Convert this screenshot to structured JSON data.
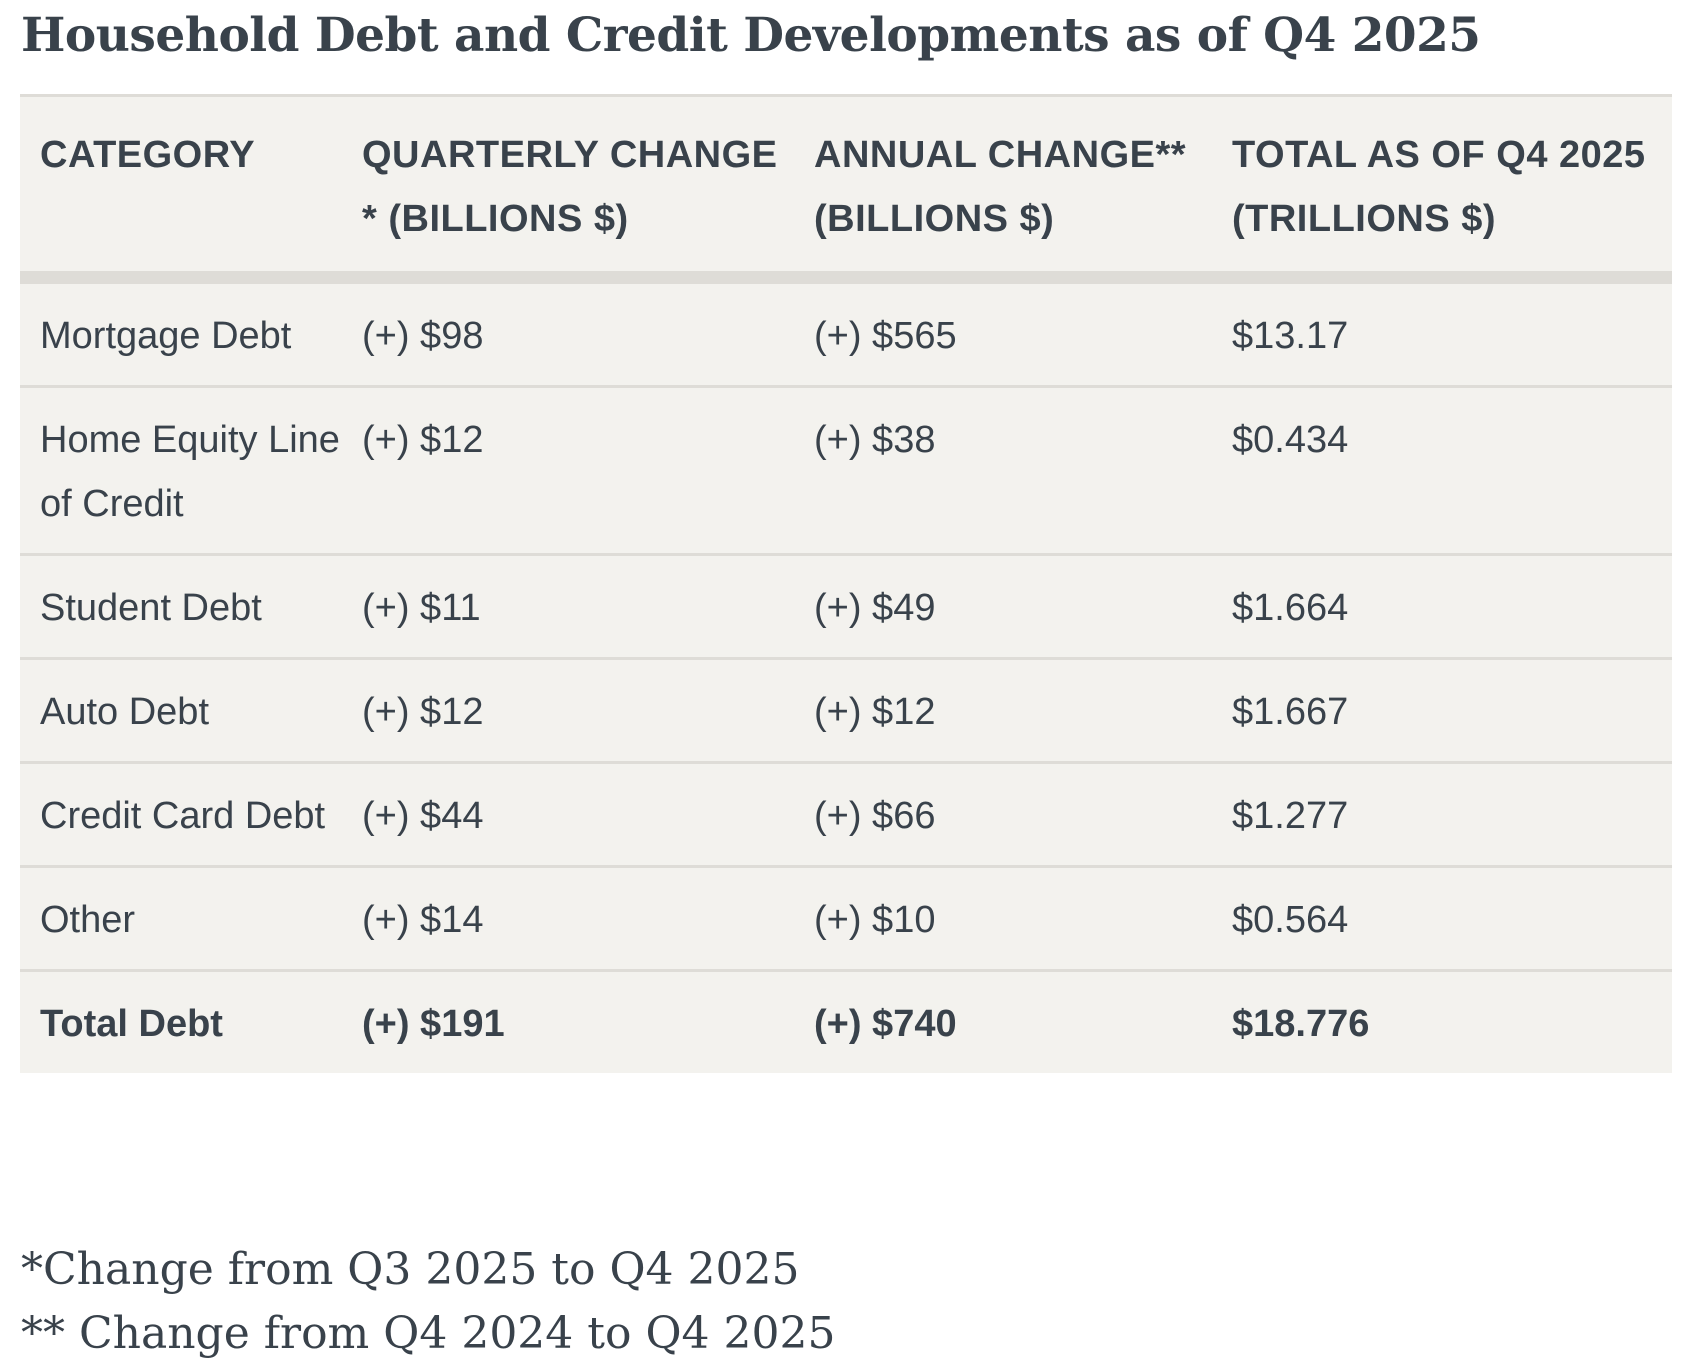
{
  "title": "Household Debt and Credit Developments as of Q4 2025",
  "table": {
    "headers": [
      "CATEGORY",
      "QUARTERLY CHANGE * (BILLIONS $)",
      "ANNUAL CHANGE** (BILLIONS $)",
      "TOTAL AS OF Q4 2025 (TRILLIONS $)"
    ],
    "rows": [
      [
        "Mortgage Debt",
        "(+) $98",
        "(+) $565",
        "$13.17"
      ],
      [
        "Home Equity Line of Credit",
        "(+) $12",
        "(+) $38",
        "$0.434"
      ],
      [
        "Student Debt",
        "(+) $11",
        "(+) $49",
        "$1.664"
      ],
      [
        "Auto Debt",
        "(+) $12",
        "(+) $12",
        "$1.667"
      ],
      [
        "Credit Card Debt",
        "(+) $44",
        "(+) $66",
        "$1.277"
      ],
      [
        "Other",
        "(+) $14",
        "(+) $10",
        "$0.564"
      ],
      [
        "Total Debt",
        "(+) $191",
        "(+) $740",
        "$18.776"
      ]
    ]
  },
  "footnotes": [
    "*Change from Q3 2025 to Q4 2025",
    "** Change from Q4 2024 to Q4 2025"
  ]
}
